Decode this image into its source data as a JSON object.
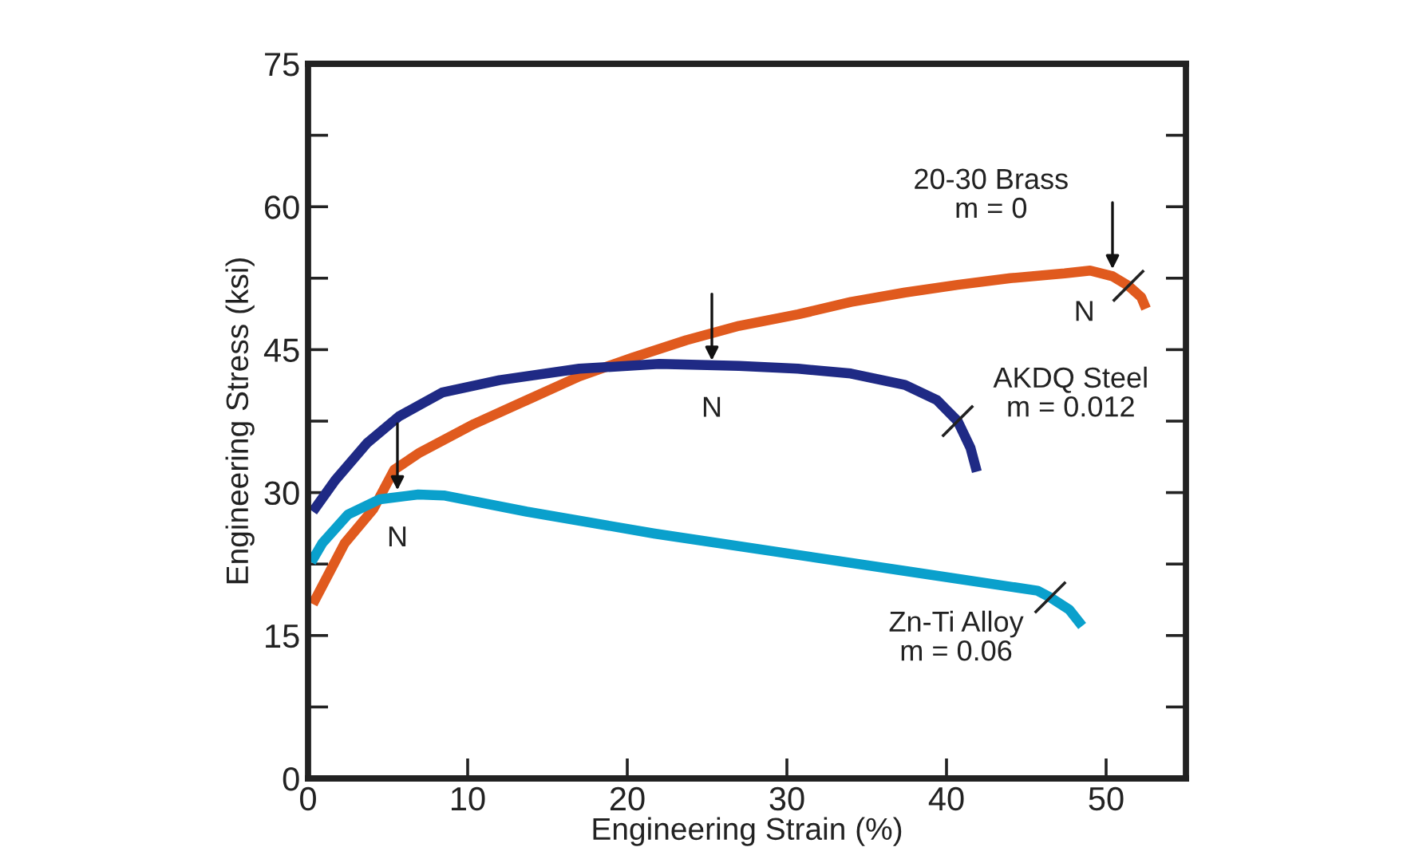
{
  "chart_data": {
    "type": "line",
    "xlabel": "Engineering Strain (%)",
    "ylabel": "Engineering Stress (ksi)",
    "xlim": [
      0,
      55
    ],
    "ylim": [
      0,
      75
    ],
    "xticks": [
      0,
      10,
      20,
      30,
      40,
      50
    ],
    "yticks": [
      0,
      {
        "value": 7.5,
        "label": null
      },
      15,
      {
        "value": 22.5,
        "label": null
      },
      30,
      {
        "value": 37.5,
        "label": null
      },
      45,
      {
        "value": 52.5,
        "label": null
      },
      60,
      {
        "value": 67.5,
        "label": null
      },
      75
    ],
    "grid": false,
    "legend": false,
    "marker": "none",
    "line_style": "solid",
    "series": [
      {
        "name": "20-30 Brass\nm = 0",
        "color": "#e05a1e",
        "x": [
          0.3,
          2.3,
          4.1,
          5.4,
          7,
          10.4,
          13.7,
          17,
          20.4,
          23.7,
          27,
          30.7,
          34,
          37.4,
          40.7,
          44,
          47.4,
          49,
          50.4,
          51.4,
          52.2,
          52.5
        ],
        "values": [
          18.3,
          24.7,
          28.3,
          32.4,
          34.2,
          37.2,
          39.7,
          42.2,
          44.2,
          46,
          47.5,
          48.7,
          50,
          51,
          51.8,
          52.5,
          53,
          53.3,
          52.7,
          51.7,
          50.5,
          49.3
        ]
      },
      {
        "name": "AKDQ Steel\nm = 0.012",
        "color": "#1f2a85",
        "x": [
          0.3,
          1.7,
          3.7,
          5.7,
          8.4,
          12,
          17,
          22,
          27,
          30.7,
          34,
          37.4,
          39.4,
          40.7,
          41.5,
          41.9
        ],
        "values": [
          28,
          31.3,
          35.2,
          38,
          40.5,
          41.8,
          43,
          43.5,
          43.3,
          43,
          42.5,
          41.3,
          39.7,
          37.5,
          34.7,
          32.2
        ]
      },
      {
        "name": "Zn-Ti Alloy\nm = 0.06",
        "color": "#0aa0cc",
        "x": [
          0.2,
          0.9,
          2.5,
          4.5,
          6.9,
          8.5,
          13.7,
          21.7,
          29.7,
          37.7,
          45.7,
          46.5,
          47.7,
          48.5
        ],
        "values": [
          22.7,
          24.7,
          27.7,
          29.3,
          29.8,
          29.7,
          28,
          25.7,
          23.7,
          21.7,
          19.7,
          19,
          17.7,
          16
        ]
      }
    ],
    "annotations": [
      {
        "text": "N",
        "x": 50.4,
        "y": 53
      },
      {
        "text": "N",
        "x": 25.3,
        "y": 43.4
      },
      {
        "text": "N",
        "x": 5.6,
        "y": 29.8
      }
    ]
  }
}
